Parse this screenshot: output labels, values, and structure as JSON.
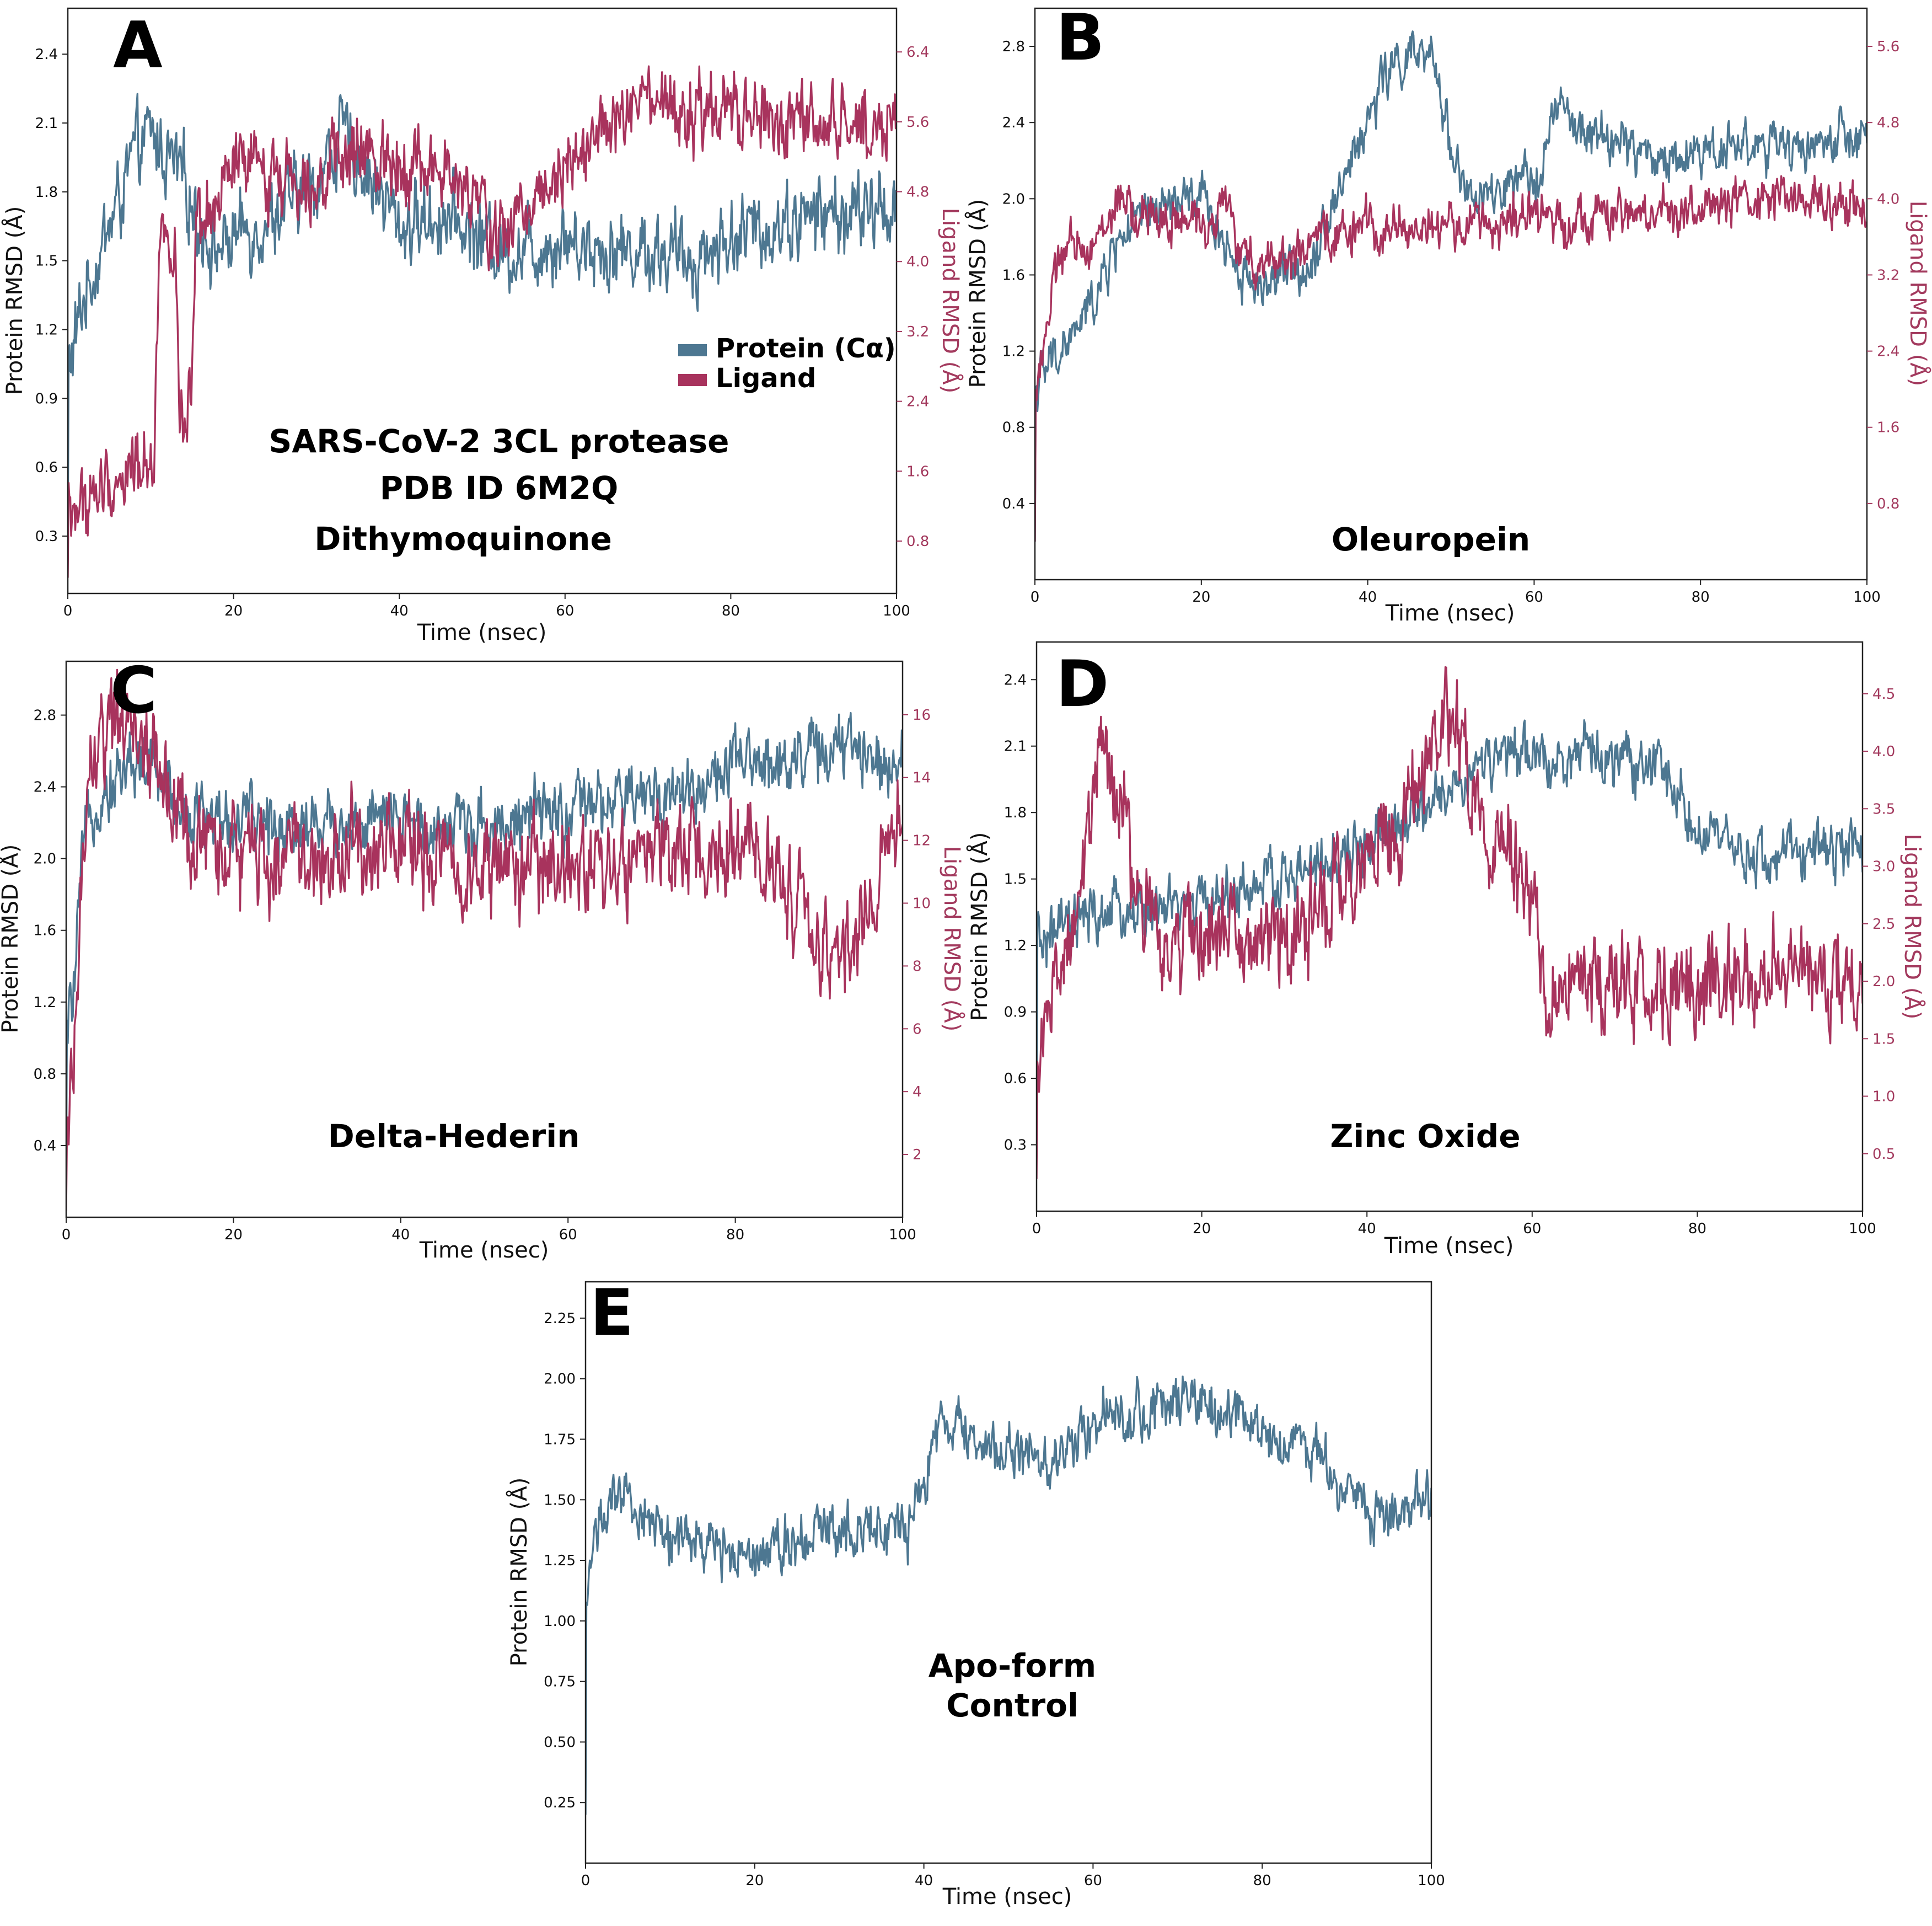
{
  "colors": {
    "protein": "#4d7791",
    "ligand": "#a8335d",
    "ligand_axis": "#a33a5e"
  },
  "chart_data": [
    {
      "id": "A",
      "type": "line",
      "panel_label": "A",
      "annotation": [
        "SARS-CoV-2 3CL protease",
        "PDB ID  6M2Q",
        "Dithymoquinone"
      ],
      "xlabel": "Time (nsec)",
      "ylabel": "Protein RMSD (Å)",
      "y2label": "Ligand RMSD (Å)",
      "xlim": [
        0,
        100
      ],
      "ylim": [
        0.05,
        2.6
      ],
      "y2lim": [
        0.2,
        6.9
      ],
      "xticks": [
        0,
        20,
        40,
        60,
        80,
        100
      ],
      "yticks": [
        "0.3",
        "0.6",
        "0.9",
        "1.2",
        "1.5",
        "1.8",
        "2.1",
        "2.4"
      ],
      "y2ticks": [
        "0.8",
        "1.6",
        "2.4",
        "3.2",
        "4.0",
        "4.8",
        "5.6",
        "6.4"
      ],
      "legend": {
        "position": "center-right",
        "entries": [
          "Protein (Cα)",
          "Ligand"
        ]
      },
      "series": [
        {
          "name": "Protein (Cα)",
          "axis": "left",
          "x": [
            0,
            2,
            4,
            6,
            8,
            10,
            12,
            14,
            16,
            18,
            20,
            25,
            30,
            33,
            36,
            40,
            45,
            50,
            53,
            55,
            60,
            65,
            70,
            75,
            80,
            85,
            90,
            95,
            100
          ],
          "values": [
            1.0,
            1.35,
            1.55,
            1.75,
            1.95,
            2.05,
            1.95,
            1.85,
            1.65,
            1.55,
            1.6,
            1.7,
            1.85,
            2.05,
            1.9,
            1.65,
            1.7,
            1.6,
            1.55,
            1.55,
            1.6,
            1.55,
            1.55,
            1.5,
            1.6,
            1.65,
            1.7,
            1.7,
            1.75
          ],
          "noise": 0.12
        },
        {
          "name": "Ligand",
          "axis": "right",
          "x": [
            0,
            3,
            6,
            9,
            10.5,
            11,
            13,
            13.5,
            15,
            15.5,
            18,
            20,
            25,
            30,
            35,
            40,
            45,
            50,
            52,
            55,
            60,
            65,
            70,
            75,
            80,
            85,
            90,
            95,
            100
          ],
          "values": [
            1.1,
            1.3,
            1.5,
            1.7,
            1.9,
            4.3,
            4.3,
            1.9,
            2.5,
            4.2,
            4.6,
            5.1,
            5.0,
            5.0,
            5.2,
            5.2,
            5.0,
            4.6,
            4.2,
            4.6,
            5.2,
            5.5,
            5.8,
            5.6,
            5.7,
            5.6,
            5.5,
            5.6,
            5.6
          ],
          "noise": 0.3
        }
      ]
    },
    {
      "id": "B",
      "type": "line",
      "panel_label": "B",
      "annotation": [
        "Oleuropein"
      ],
      "xlabel": "Time (nsec)",
      "ylabel": "Protein RMSD (Å)",
      "y2label": "Ligand RMSD (Å)",
      "xlim": [
        0,
        100
      ],
      "ylim": [
        0.0,
        3.0
      ],
      "y2lim": [
        0.0,
        6.0
      ],
      "xticks": [
        0,
        20,
        40,
        60,
        80,
        100
      ],
      "yticks": [
        "0.4",
        "0.8",
        "1.2",
        "1.6",
        "2.0",
        "2.4",
        "2.8"
      ],
      "y2ticks": [
        "0.8",
        "1.6",
        "2.4",
        "3.2",
        "4.0",
        "4.8",
        "5.6"
      ],
      "series": [
        {
          "name": "Protein (Cα)",
          "axis": "left",
          "x": [
            0,
            2,
            5,
            8,
            10,
            15,
            20,
            25,
            27,
            30,
            33,
            35,
            38,
            40,
            42,
            45,
            48,
            50,
            52,
            55,
            60,
            63,
            65,
            70,
            75,
            80,
            85,
            90,
            95,
            100
          ],
          "values": [
            1.0,
            1.15,
            1.3,
            1.55,
            1.8,
            1.95,
            2.0,
            1.6,
            1.55,
            1.6,
            1.65,
            1.9,
            2.2,
            2.4,
            2.65,
            2.75,
            2.7,
            2.3,
            2.0,
            2.0,
            2.1,
            2.5,
            2.35,
            2.3,
            2.2,
            2.25,
            2.3,
            2.25,
            2.3,
            2.3
          ],
          "noise": 0.09
        },
        {
          "name": "Ligand",
          "axis": "right",
          "x": [
            0,
            3,
            8,
            10,
            12,
            15,
            20,
            23,
            25,
            28,
            32,
            35,
            40,
            50,
            60,
            70,
            80,
            90,
            95,
            100
          ],
          "values": [
            2.0,
            3.4,
            3.6,
            4.0,
            3.8,
            3.8,
            3.7,
            4.0,
            3.3,
            3.4,
            3.4,
            3.6,
            3.7,
            3.7,
            3.8,
            3.8,
            3.9,
            4.0,
            4.0,
            3.9
          ],
          "noise": 0.17
        }
      ]
    },
    {
      "id": "C",
      "type": "line",
      "panel_label": "C",
      "annotation": [
        "Delta-Hederin"
      ],
      "xlabel": "Time (nsec)",
      "ylabel": "Protein RMSD (Å)",
      "y2label": "Ligand RMSD (Å)",
      "xlim": [
        0,
        100
      ],
      "ylim": [
        0.0,
        3.1
      ],
      "y2lim": [
        0.0,
        17.7
      ],
      "xticks": [
        0,
        20,
        40,
        60,
        80,
        100
      ],
      "yticks": [
        "0.4",
        "0.8",
        "1.2",
        "1.6",
        "2.0",
        "2.4",
        "2.8"
      ],
      "y2ticks": [
        "2",
        "4",
        "6",
        "8",
        "10",
        "12",
        "14",
        "16"
      ],
      "series": [
        {
          "name": "Protein (Cα)",
          "axis": "left",
          "x": [
            0,
            1,
            2,
            3,
            5,
            8,
            10,
            12,
            15,
            20,
            25,
            30,
            40,
            50,
            60,
            65,
            70,
            75,
            80,
            85,
            90,
            95,
            100
          ],
          "values": [
            1.0,
            1.3,
            2.0,
            2.3,
            2.4,
            2.55,
            2.5,
            2.4,
            2.25,
            2.2,
            2.2,
            2.2,
            2.2,
            2.2,
            2.25,
            2.3,
            2.35,
            2.4,
            2.5,
            2.55,
            2.6,
            2.6,
            2.55
          ],
          "noise": 0.13
        },
        {
          "name": "Ligand",
          "axis": "right",
          "x": [
            0,
            1,
            2,
            3,
            5,
            8,
            10,
            12,
            15,
            20,
            30,
            40,
            50,
            60,
            70,
            80,
            85,
            88,
            90,
            92,
            95,
            98,
            100
          ],
          "values": [
            1.0,
            6.0,
            11.0,
            14.5,
            15.5,
            15.5,
            15.0,
            13.5,
            12.0,
            11.5,
            11.5,
            12.0,
            11.0,
            11.0,
            11.5,
            11.5,
            11.0,
            10.0,
            8.0,
            8.0,
            9.5,
            11.5,
            13.0
          ],
          "noise": 1.1
        }
      ]
    },
    {
      "id": "D",
      "type": "line",
      "panel_label": "D",
      "annotation": [
        "Zinc Oxide"
      ],
      "xlabel": "Time (nsec)",
      "ylabel": "Protein RMSD (Å)",
      "y2label": "Ligand RMSD (Å)",
      "xlim": [
        0,
        100
      ],
      "ylim": [
        0.0,
        2.57
      ],
      "y2lim": [
        0.0,
        4.95
      ],
      "xticks": [
        0,
        20,
        40,
        60,
        80,
        100
      ],
      "yticks": [
        "0.3",
        "0.6",
        "0.9",
        "1.2",
        "1.5",
        "1.8",
        "2.1",
        "2.4"
      ],
      "y2ticks": [
        "0.5",
        "1.0",
        "1.5",
        "2.0",
        "2.5",
        "3.0",
        "3.5",
        "4.0",
        "4.5"
      ],
      "series": [
        {
          "name": "Protein (Cα)",
          "axis": "left",
          "x": [
            0,
            2,
            5,
            10,
            15,
            20,
            25,
            30,
            35,
            40,
            45,
            50,
            55,
            60,
            65,
            70,
            75,
            78,
            80,
            85,
            90,
            95,
            100
          ],
          "values": [
            1.2,
            1.25,
            1.3,
            1.35,
            1.35,
            1.4,
            1.45,
            1.5,
            1.55,
            1.65,
            1.75,
            1.9,
            2.05,
            2.05,
            2.05,
            2.05,
            2.0,
            1.9,
            1.7,
            1.6,
            1.6,
            1.65,
            1.65
          ],
          "noise": 0.09
        },
        {
          "name": "Ligand",
          "axis": "right",
          "x": [
            0,
            2,
            4,
            6,
            8,
            10,
            12,
            15,
            20,
            25,
            30,
            35,
            40,
            45,
            48,
            50,
            52,
            55,
            58,
            60,
            62,
            65,
            70,
            75,
            80,
            85,
            90,
            95,
            100
          ],
          "values": [
            1.4,
            1.8,
            2.4,
            3.2,
            4.0,
            3.6,
            2.8,
            2.3,
            2.4,
            2.4,
            2.4,
            2.7,
            3.0,
            3.6,
            4.1,
            4.2,
            3.8,
            3.3,
            3.0,
            2.6,
            2.0,
            2.0,
            1.9,
            2.0,
            2.0,
            2.0,
            2.2,
            2.0,
            2.0
          ],
          "noise": 0.3
        }
      ]
    },
    {
      "id": "E",
      "type": "line",
      "panel_label": "E",
      "annotation": [
        "Apo-form",
        "Control"
      ],
      "xlabel": "Time (nsec)",
      "ylabel": "Protein RMSD (Å)",
      "xlim": [
        0,
        100
      ],
      "ylim": [
        0.0,
        2.4
      ],
      "xticks": [
        0,
        20,
        40,
        60,
        80,
        100
      ],
      "yticks": [
        "0.25",
        "0.50",
        "0.75",
        "1.00",
        "1.25",
        "1.50",
        "1.75",
        "2.00",
        "2.25"
      ],
      "series": [
        {
          "name": "Protein (Cα)",
          "axis": "left",
          "x": [
            0,
            1,
            3,
            5,
            8,
            10,
            15,
            20,
            25,
            30,
            35,
            38,
            40,
            42,
            45,
            50,
            55,
            58,
            60,
            65,
            70,
            75,
            80,
            85,
            88,
            90,
            92,
            95,
            100
          ],
          "values": [
            1.0,
            1.4,
            1.45,
            1.5,
            1.4,
            1.35,
            1.3,
            1.3,
            1.35,
            1.4,
            1.4,
            1.35,
            1.55,
            1.85,
            1.75,
            1.7,
            1.65,
            1.75,
            1.85,
            1.85,
            1.9,
            1.85,
            1.8,
            1.7,
            1.65,
            1.55,
            1.45,
            1.45,
            1.5
          ],
          "noise": 0.08
        }
      ]
    }
  ]
}
